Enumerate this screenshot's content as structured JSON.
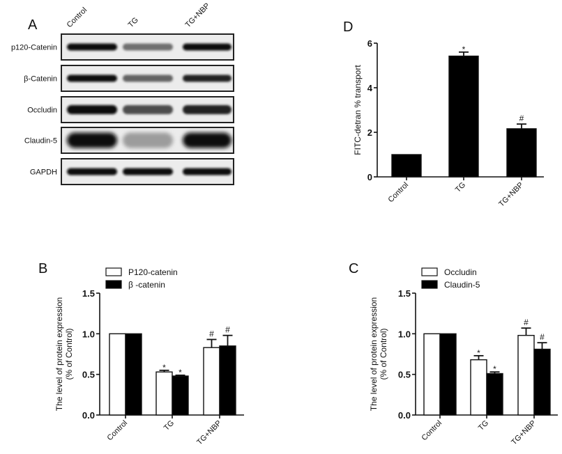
{
  "figure": {
    "panels": [
      "A",
      "B",
      "C",
      "D"
    ]
  },
  "blot": {
    "panel_label": "A",
    "lanes": [
      "Control",
      "TG",
      "TG+NBP"
    ],
    "proteins": [
      "p120-Catenin",
      "β-Catenin",
      "Occludin",
      "Claudin-5",
      "GAPDH"
    ],
    "band_intensity": [
      [
        1.0,
        0.55,
        1.0
      ],
      [
        1.0,
        0.6,
        0.9
      ],
      [
        1.0,
        0.7,
        0.9
      ],
      [
        1.0,
        0.35,
        1.0
      ],
      [
        1.0,
        1.0,
        1.0
      ]
    ]
  },
  "chart_data": [
    {
      "panel": "B",
      "type": "bar",
      "title": "",
      "categories": [
        "Control",
        "TG",
        "TG+NBP"
      ],
      "series": [
        {
          "name": "P120-catenin",
          "fill": "#ffffff",
          "values": [
            1.0,
            0.53,
            0.83
          ],
          "errors": [
            0.0,
            0.02,
            0.1
          ],
          "significance": [
            "",
            "*",
            "#"
          ]
        },
        {
          "name": "β -catenin",
          "fill": "#000000",
          "values": [
            1.0,
            0.48,
            0.85
          ],
          "errors": [
            0.0,
            0.01,
            0.13
          ],
          "significance": [
            "",
            "*",
            "#"
          ]
        }
      ],
      "xlabel": "",
      "ylabel": "The level of protein expression (% of Control)",
      "ylabel_lines": [
        "The level of protein expression",
        "(% of Control)"
      ],
      "ylim": [
        0,
        1.5
      ],
      "yticks": [
        "0.0",
        "0.5",
        "1.0",
        "1.5"
      ],
      "legend_position": "top",
      "grid": false
    },
    {
      "panel": "C",
      "type": "bar",
      "title": "",
      "categories": [
        "Control",
        "TG",
        "TG+NBP"
      ],
      "series": [
        {
          "name": "Occludin",
          "fill": "#ffffff",
          "values": [
            1.0,
            0.68,
            0.98
          ],
          "errors": [
            0.0,
            0.05,
            0.09
          ],
          "significance": [
            "",
            "*",
            "#"
          ]
        },
        {
          "name": "Claudin-5",
          "fill": "#000000",
          "values": [
            1.0,
            0.51,
            0.81
          ],
          "errors": [
            0.0,
            0.02,
            0.08
          ],
          "significance": [
            "",
            "*",
            "#"
          ]
        }
      ],
      "xlabel": "",
      "ylabel": "The level of protein expression (% of Control)",
      "ylabel_lines": [
        "The level of protein expression",
        "(% of Control)"
      ],
      "ylim": [
        0,
        1.5
      ],
      "yticks": [
        "0.0",
        "0.5",
        "1.0",
        "1.5"
      ],
      "legend_position": "top",
      "grid": false
    },
    {
      "panel": "D",
      "type": "bar",
      "title": "",
      "categories": [
        "Control",
        "TG",
        "TG+NBP"
      ],
      "series": [
        {
          "name": "FITC-detran % transport",
          "fill": "#000000",
          "values": [
            1.0,
            5.42,
            2.16
          ],
          "errors": [
            0.0,
            0.18,
            0.21
          ],
          "significance": [
            "",
            "*",
            "#"
          ]
        }
      ],
      "xlabel": "",
      "ylabel": "FITC-detran % transport",
      "ylim": [
        0,
        6
      ],
      "yticks": [
        "0",
        "2",
        "4",
        "6"
      ],
      "legend_position": "none",
      "grid": false
    }
  ]
}
